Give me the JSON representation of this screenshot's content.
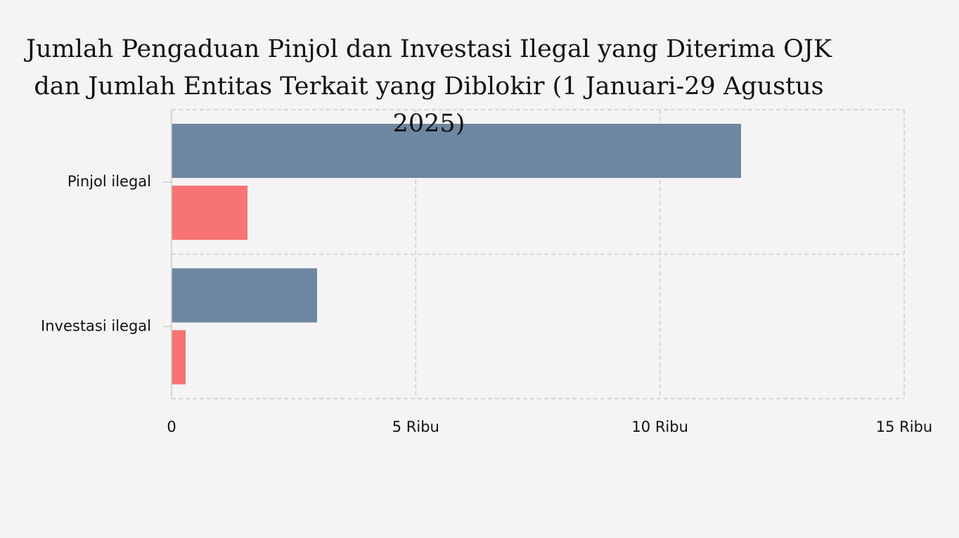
{
  "chart_data": {
    "type": "bar",
    "orientation": "horizontal",
    "title": "Jumlah Pengaduan Pinjol dan Investasi Ilegal yang Diterima OJK dan Jumlah Entitas Terkait yang Diblokir (1 Januari-29 Agustus 2025)",
    "categories": [
      "Pinjol ilegal",
      "Investasi ilegal"
    ],
    "series": [
      {
        "color": "#6f86a0",
        "values": [
          11660,
          2980
        ]
      },
      {
        "color": "#f87474",
        "values": [
          1555,
          288
        ]
      }
    ],
    "xlim": [
      0,
      15000
    ],
    "xticks": [
      0,
      {
        "value": 5000,
        "label": "5 Ribu"
      },
      {
        "value": 10000,
        "label": "10 Ribu"
      },
      {
        "value": 15000,
        "label": "15 Ribu"
      }
    ],
    "grid": true
  }
}
